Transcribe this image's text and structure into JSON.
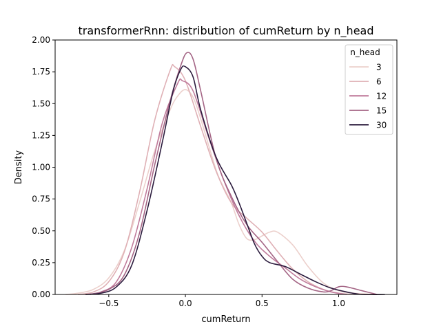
{
  "chart_data": {
    "type": "line",
    "title": "transformerRnn: distribution of cumReturn by n_head",
    "xlabel": "cumReturn",
    "ylabel": "Density",
    "xlim": [
      -0.85,
      1.38
    ],
    "ylim": [
      0.0,
      2.0
    ],
    "xticks": [
      -0.5,
      0.0,
      0.5,
      1.0
    ],
    "xtick_labels": [
      "−0.5",
      "0.0",
      "0.5",
      "1.0"
    ],
    "yticks": [
      0.0,
      0.25,
      0.5,
      0.75,
      1.0,
      1.25,
      1.5,
      1.75,
      2.0
    ],
    "ytick_labels": [
      "0.00",
      "0.25",
      "0.50",
      "0.75",
      "1.00",
      "1.25",
      "1.50",
      "1.75",
      "2.00"
    ],
    "grid": false,
    "legend_title": "n_head",
    "legend_position": "top-right",
    "series": [
      {
        "name": "3",
        "color": "#ecd0cc",
        "points": [
          [
            -0.78,
            0.0
          ],
          [
            -0.7,
            0.01
          ],
          [
            -0.6,
            0.04
          ],
          [
            -0.5,
            0.13
          ],
          [
            -0.4,
            0.34
          ],
          [
            -0.3,
            0.72
          ],
          [
            -0.2,
            1.13
          ],
          [
            -0.1,
            1.45
          ],
          [
            -0.05,
            1.56
          ],
          [
            0.0,
            1.61
          ],
          [
            0.05,
            1.55
          ],
          [
            0.1,
            1.38
          ],
          [
            0.2,
            0.98
          ],
          [
            0.25,
            0.84
          ],
          [
            0.3,
            0.72
          ],
          [
            0.35,
            0.55
          ],
          [
            0.4,
            0.44
          ],
          [
            0.45,
            0.43
          ],
          [
            0.5,
            0.46
          ],
          [
            0.55,
            0.49
          ],
          [
            0.6,
            0.49
          ],
          [
            0.7,
            0.39
          ],
          [
            0.8,
            0.22
          ],
          [
            0.9,
            0.09
          ],
          [
            1.0,
            0.03
          ],
          [
            1.1,
            0.01
          ],
          [
            1.25,
            0.0
          ]
        ]
      },
      {
        "name": "6",
        "color": "#dfb0b5",
        "points": [
          [
            -0.7,
            0.0
          ],
          [
            -0.6,
            0.02
          ],
          [
            -0.5,
            0.1
          ],
          [
            -0.4,
            0.33
          ],
          [
            -0.3,
            0.8
          ],
          [
            -0.2,
            1.37
          ],
          [
            -0.1,
            1.76
          ],
          [
            -0.07,
            1.79
          ],
          [
            0.0,
            1.68
          ],
          [
            0.1,
            1.32
          ],
          [
            0.2,
            0.97
          ],
          [
            0.3,
            0.72
          ],
          [
            0.4,
            0.6
          ],
          [
            0.5,
            0.49
          ],
          [
            0.6,
            0.34
          ],
          [
            0.7,
            0.2
          ],
          [
            0.8,
            0.1
          ],
          [
            0.9,
            0.04
          ],
          [
            1.0,
            0.01
          ],
          [
            1.1,
            0.0
          ]
        ]
      },
      {
        "name": "12",
        "color": "#c07c9c",
        "points": [
          [
            -0.65,
            0.0
          ],
          [
            -0.55,
            0.02
          ],
          [
            -0.45,
            0.1
          ],
          [
            -0.35,
            0.37
          ],
          [
            -0.25,
            0.83
          ],
          [
            -0.15,
            1.35
          ],
          [
            -0.05,
            1.66
          ],
          [
            -0.02,
            1.68
          ],
          [
            0.05,
            1.6
          ],
          [
            0.15,
            1.24
          ],
          [
            0.25,
            0.9
          ],
          [
            0.35,
            0.62
          ],
          [
            0.45,
            0.42
          ],
          [
            0.55,
            0.3
          ],
          [
            0.65,
            0.21
          ],
          [
            0.75,
            0.12
          ],
          [
            0.85,
            0.06
          ],
          [
            0.95,
            0.02
          ],
          [
            1.05,
            0.0
          ]
        ]
      },
      {
        "name": "15",
        "color": "#a46585",
        "points": [
          [
            -0.62,
            0.0
          ],
          [
            -0.5,
            0.04
          ],
          [
            -0.4,
            0.15
          ],
          [
            -0.3,
            0.48
          ],
          [
            -0.2,
            1.02
          ],
          [
            -0.1,
            1.52
          ],
          [
            -0.03,
            1.8
          ],
          [
            0.01,
            1.9
          ],
          [
            0.05,
            1.85
          ],
          [
            0.1,
            1.6
          ],
          [
            0.2,
            1.07
          ],
          [
            0.3,
            0.77
          ],
          [
            0.4,
            0.55
          ],
          [
            0.5,
            0.41
          ],
          [
            0.6,
            0.26
          ],
          [
            0.7,
            0.12
          ],
          [
            0.8,
            0.05
          ],
          [
            0.9,
            0.02
          ],
          [
            0.95,
            0.03
          ],
          [
            1.0,
            0.06
          ],
          [
            1.05,
            0.06
          ],
          [
            1.15,
            0.03
          ],
          [
            1.25,
            0.0
          ]
        ]
      },
      {
        "name": "30",
        "color": "#2b1b3d",
        "points": [
          [
            -0.65,
            0.0
          ],
          [
            -0.55,
            0.01
          ],
          [
            -0.45,
            0.06
          ],
          [
            -0.35,
            0.23
          ],
          [
            -0.25,
            0.66
          ],
          [
            -0.15,
            1.2
          ],
          [
            -0.08,
            1.6
          ],
          [
            -0.03,
            1.77
          ],
          [
            0.0,
            1.79
          ],
          [
            0.05,
            1.71
          ],
          [
            0.1,
            1.45
          ],
          [
            0.2,
            1.08
          ],
          [
            0.3,
            0.86
          ],
          [
            0.35,
            0.72
          ],
          [
            0.4,
            0.56
          ],
          [
            0.45,
            0.4
          ],
          [
            0.5,
            0.3
          ],
          [
            0.55,
            0.25
          ],
          [
            0.65,
            0.22
          ],
          [
            0.75,
            0.16
          ],
          [
            0.85,
            0.1
          ],
          [
            0.95,
            0.05
          ],
          [
            1.05,
            0.02
          ],
          [
            1.15,
            0.0
          ],
          [
            1.3,
            0.0
          ]
        ]
      }
    ]
  }
}
